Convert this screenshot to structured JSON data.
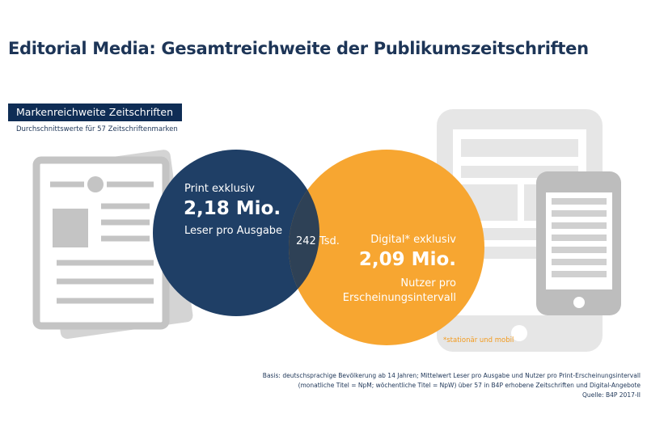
{
  "title": "Editorial Media: Gesamtreichweite der Publikumszeitschriften",
  "badge": "Markenreichweite Zeitschriften",
  "subtitle": "Durchschnittswerte für 57 Zeitschriftenmarken",
  "print": {
    "label": "Print exklusiv",
    "value": "2,18 Mio.",
    "unit": "Leser pro Ausgabe",
    "color": "#1f3f66"
  },
  "overlap": {
    "value": "242 Tsd."
  },
  "digital": {
    "label": "Digital* exklusiv",
    "value": "2,09 Mio.",
    "unit1": "Nutzer pro",
    "unit2": "Erscheinungsintervall",
    "color": "#f7a631"
  },
  "note": "*stationär und mobil",
  "footer": {
    "line1": "Basis: deutschsprachige Bevölkerung ab 14 Jahren; Mittelwert Leser pro Ausgabe und Nutzer pro Print-Erscheinungsintervall",
    "line2": "(monatliche Titel = NpM; wöchentliche Titel = NpW) über 57 in B4P erhobene Zeitschriften und Digital-Angebote",
    "line3": "Quelle: B4P 2017-II"
  },
  "icons": [
    "newspaper-icon",
    "tablet-icon",
    "smartphone-icon"
  ]
}
